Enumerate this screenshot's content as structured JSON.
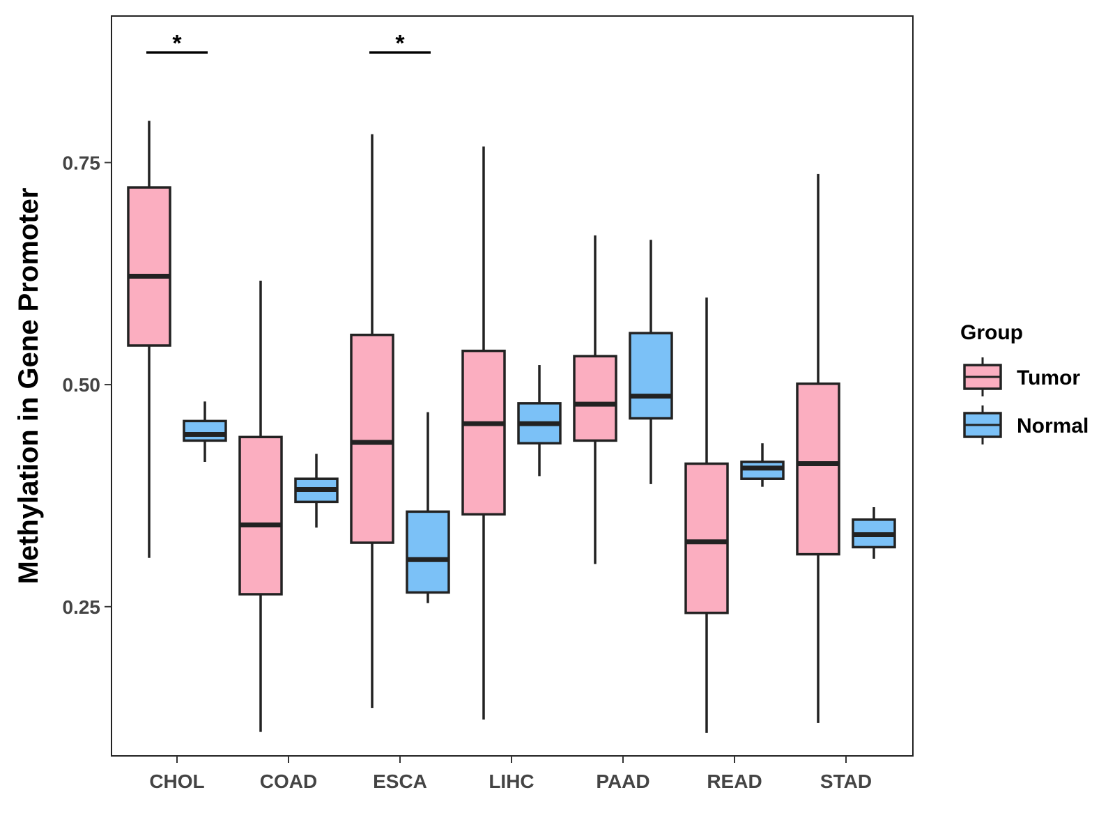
{
  "chart_data": {
    "type": "boxplot",
    "title": "",
    "xlabel": "",
    "ylabel": "Methylation in Gene Promoter",
    "ylim": [
      0.082,
      0.915
    ],
    "yticks": [
      0.25,
      0.5,
      0.75
    ],
    "ytick_labels": [
      "0.25",
      "0.50",
      "0.75"
    ],
    "categories": [
      "CHOL",
      "COAD",
      "ESCA",
      "LIHC",
      "PAAD",
      "READ",
      "STAD"
    ],
    "grid": false,
    "legend": {
      "title": "Group",
      "placement": "right",
      "entries": [
        {
          "name": "Tumor",
          "color": "#fbaec0"
        },
        {
          "name": "Normal",
          "color": "#7bc1f7"
        }
      ]
    },
    "series": [
      {
        "name": "Tumor",
        "color": "#fbaec0",
        "boxes": [
          {
            "min": 0.305,
            "q1": 0.544,
            "median": 0.622,
            "q3": 0.722,
            "max": 0.797
          },
          {
            "min": 0.109,
            "q1": 0.264,
            "median": 0.342,
            "q3": 0.441,
            "max": 0.617
          },
          {
            "min": 0.136,
            "q1": 0.322,
            "median": 0.435,
            "q3": 0.556,
            "max": 0.782
          },
          {
            "min": 0.123,
            "q1": 0.354,
            "median": 0.456,
            "q3": 0.538,
            "max": 0.768
          },
          {
            "min": 0.298,
            "q1": 0.437,
            "median": 0.478,
            "q3": 0.532,
            "max": 0.668
          },
          {
            "min": 0.108,
            "q1": 0.243,
            "median": 0.323,
            "q3": 0.411,
            "max": 0.598
          },
          {
            "min": 0.119,
            "q1": 0.309,
            "median": 0.411,
            "q3": 0.501,
            "max": 0.737
          }
        ]
      },
      {
        "name": "Normal",
        "color": "#7bc1f7",
        "boxes": [
          {
            "min": 0.413,
            "q1": 0.437,
            "median": 0.444,
            "q3": 0.459,
            "max": 0.481
          },
          {
            "min": 0.339,
            "q1": 0.368,
            "median": 0.382,
            "q3": 0.394,
            "max": 0.422
          },
          {
            "min": 0.254,
            "q1": 0.266,
            "median": 0.303,
            "q3": 0.357,
            "max": 0.469
          },
          {
            "min": 0.397,
            "q1": 0.434,
            "median": 0.456,
            "q3": 0.479,
            "max": 0.522
          },
          {
            "min": 0.388,
            "q1": 0.462,
            "median": 0.487,
            "q3": 0.558,
            "max": 0.663
          },
          {
            "min": 0.385,
            "q1": 0.394,
            "median": 0.406,
            "q3": 0.413,
            "max": 0.434
          },
          {
            "min": 0.304,
            "q1": 0.317,
            "median": 0.331,
            "q3": 0.348,
            "max": 0.362
          }
        ]
      }
    ],
    "annotations": [
      {
        "category": "CHOL",
        "text": "*",
        "y": 0.874
      },
      {
        "category": "ESCA",
        "text": "*",
        "y": 0.874
      }
    ]
  }
}
